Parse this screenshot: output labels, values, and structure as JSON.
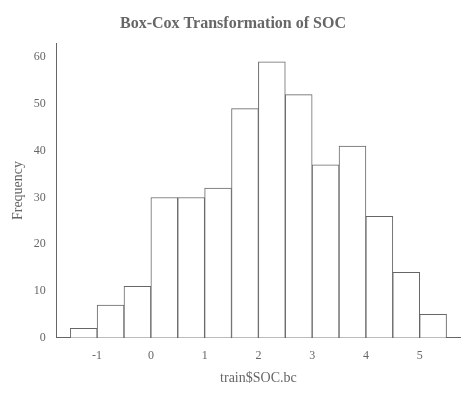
{
  "chart_data": {
    "type": "histogram",
    "title": "Box-Cox Transformation of SOC",
    "xlabel": "train$SOC.bc",
    "ylabel": "Frequency",
    "bins": [
      -1.5,
      -1.0,
      -0.5,
      0.0,
      0.5,
      1.0,
      1.5,
      2.0,
      2.5,
      3.0,
      3.5,
      4.0,
      4.5,
      5.0,
      5.5
    ],
    "values": [
      2,
      7,
      11,
      30,
      30,
      32,
      49,
      59,
      52,
      37,
      41,
      26,
      14,
      5
    ],
    "color": "#ffffff",
    "xlim": [
      -1.75,
      5.75
    ],
    "xticks": [
      -1,
      0,
      1,
      2,
      3,
      4,
      5
    ],
    "ylim": [
      0,
      63
    ],
    "yticks": [
      0,
      10,
      20,
      30,
      40,
      50,
      60
    ],
    "grid": false
  }
}
